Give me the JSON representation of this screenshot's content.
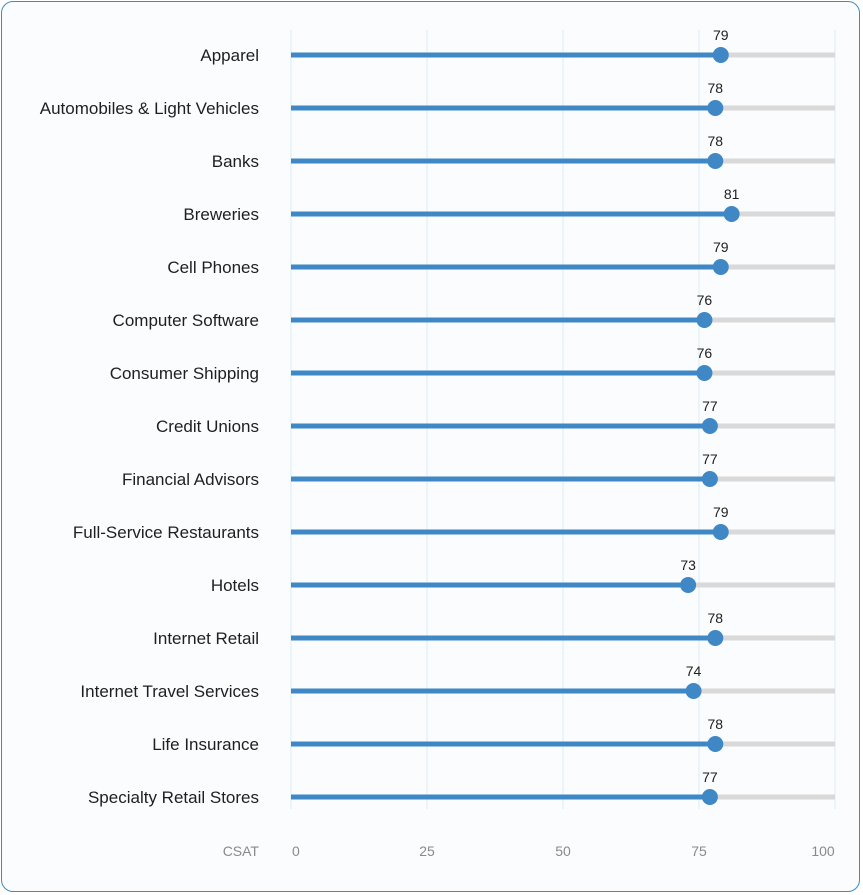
{
  "chart_data": {
    "type": "lollipop",
    "xlabel": "CSAT",
    "xlim": [
      0,
      100
    ],
    "xticks": [
      "0",
      "25",
      "50",
      "75",
      "100"
    ],
    "colors": {
      "bar": "#3f88c5",
      "track": "#d9d9d9",
      "grid": "#dcebf7",
      "border": "#3f8ac2"
    },
    "categories": [
      "Apparel",
      "Automobiles & Light Vehicles",
      "Banks",
      "Breweries",
      "Cell Phones",
      "Computer Software",
      "Consumer Shipping",
      "Credit Unions",
      "Financial Advisors",
      "Full-Service Restaurants",
      "Hotels",
      "Internet Retail",
      "Internet Travel Services",
      "Life Insurance",
      "Specialty Retail Stores"
    ],
    "values": [
      79,
      78,
      78,
      81,
      79,
      76,
      76,
      77,
      77,
      79,
      73,
      78,
      74,
      78,
      77
    ]
  }
}
